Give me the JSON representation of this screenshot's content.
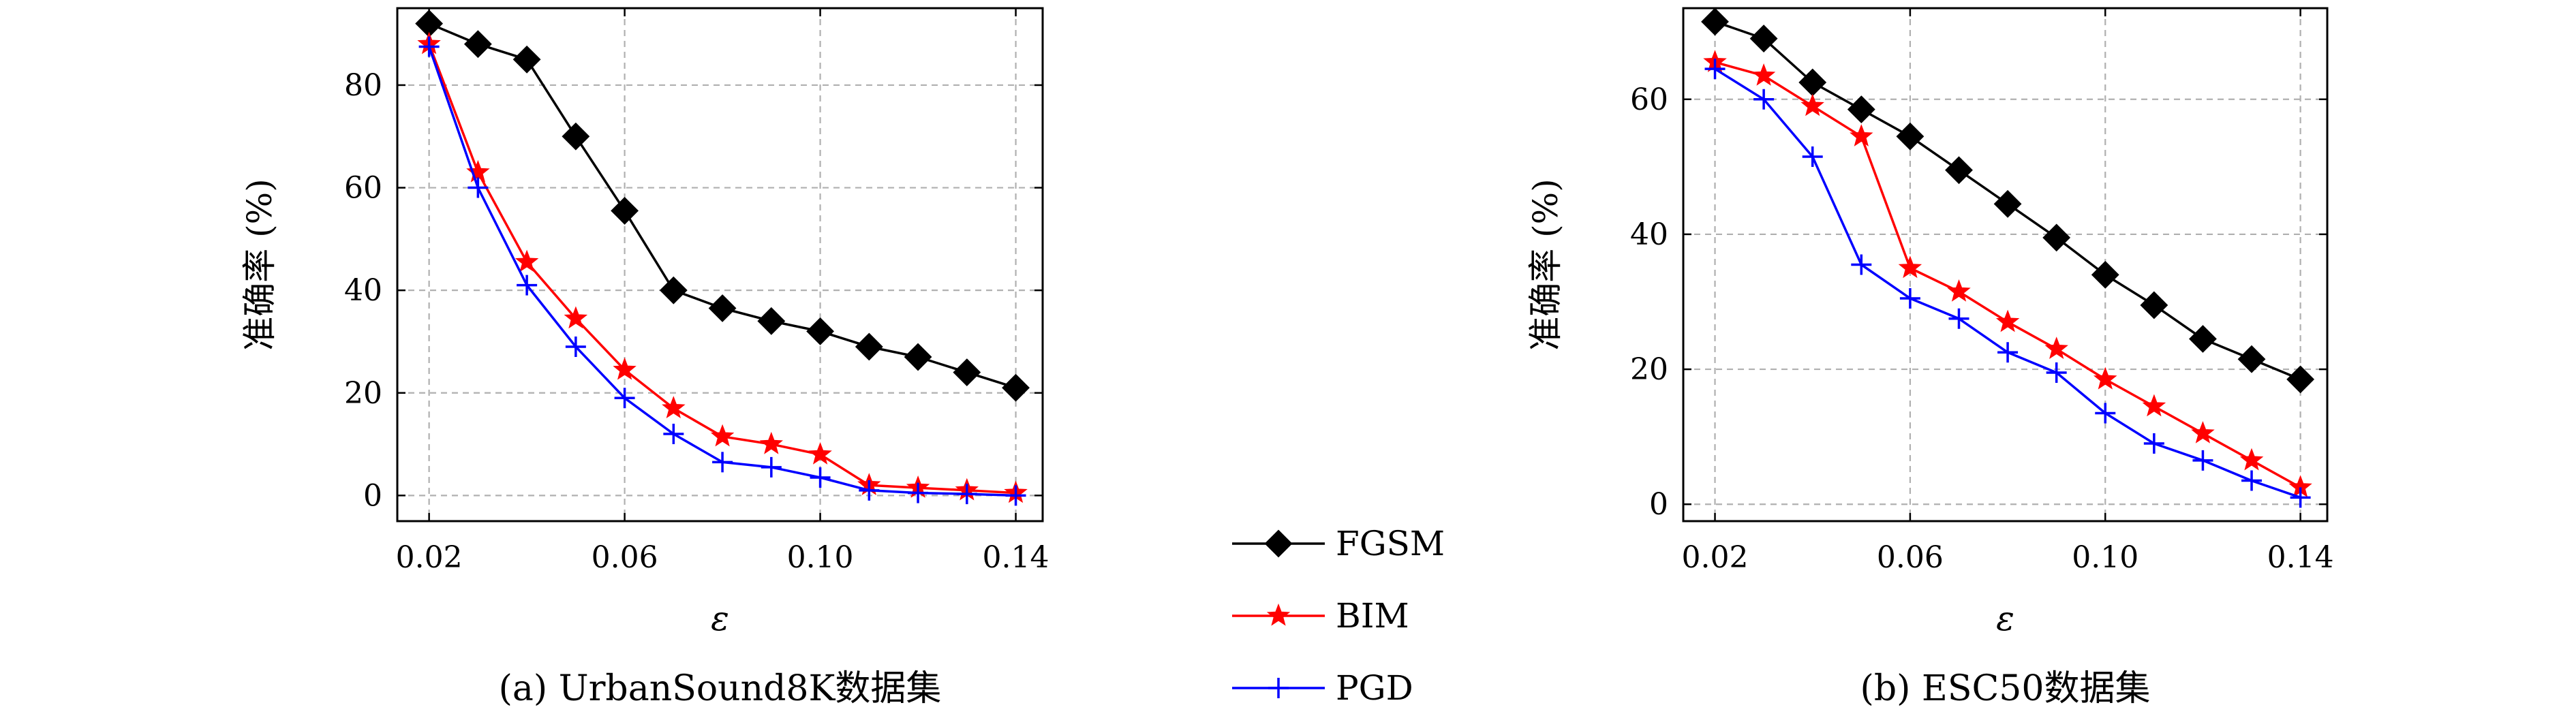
{
  "chart_data": [
    {
      "type": "line",
      "caption": "(a) UrbanSound8K数据集",
      "xlabel": "ε",
      "ylabel": "准确率 (%)",
      "x": [
        0.02,
        0.03,
        0.04,
        0.05,
        0.06,
        0.07,
        0.08,
        0.09,
        0.1,
        0.11,
        0.12,
        0.13,
        0.14
      ],
      "xlim": [
        0.0135,
        0.1455
      ],
      "ylim": [
        -5,
        95
      ],
      "xticks": [
        0.02,
        0.06,
        0.1,
        0.14
      ],
      "xtick_labels": [
        "0.02",
        "0.06",
        "0.10",
        "0.14"
      ],
      "yticks": [
        0,
        20,
        40,
        60,
        80
      ],
      "ytick_labels": [
        "0",
        "20",
        "40",
        "60",
        "80"
      ],
      "grid": true,
      "series": [
        {
          "name": "FGSM",
          "values": [
            92,
            88,
            85,
            70,
            55.5,
            40,
            36.5,
            34,
            32,
            29,
            27,
            24,
            21
          ]
        },
        {
          "name": "BIM",
          "values": [
            88,
            63,
            45.5,
            34.5,
            24.5,
            17,
            11.5,
            10,
            8,
            2,
            1.5,
            1,
            0.5
          ]
        },
        {
          "name": "PGD",
          "values": [
            87.5,
            60,
            41,
            29,
            19,
            12,
            6.5,
            5.5,
            3.5,
            1,
            0.5,
            0.3,
            0
          ]
        }
      ]
    },
    {
      "type": "line",
      "caption": "(b) ESC50数据集",
      "xlabel": "ε",
      "ylabel": "准确率 (%)",
      "x": [
        0.02,
        0.03,
        0.04,
        0.05,
        0.06,
        0.07,
        0.08,
        0.09,
        0.1,
        0.11,
        0.12,
        0.13,
        0.14
      ],
      "xlim": [
        0.0135,
        0.1455
      ],
      "ylim": [
        -2.5,
        73.5
      ],
      "xticks": [
        0.02,
        0.06,
        0.1,
        0.14
      ],
      "xtick_labels": [
        "0.02",
        "0.06",
        "0.10",
        "0.14"
      ],
      "yticks": [
        0,
        20,
        40,
        60
      ],
      "ytick_labels": [
        "0",
        "20",
        "40",
        "60"
      ],
      "grid": true,
      "series": [
        {
          "name": "FGSM",
          "values": [
            71.5,
            69,
            62.5,
            58.5,
            54.5,
            49.5,
            44.5,
            39.5,
            34,
            29.5,
            24.5,
            21.5,
            18.5
          ]
        },
        {
          "name": "BIM",
          "values": [
            65.5,
            63.5,
            59,
            54.5,
            35,
            31.5,
            27,
            23,
            18.5,
            14.5,
            10.5,
            6.5,
            2.5
          ]
        },
        {
          "name": "PGD",
          "values": [
            64.5,
            60,
            51.5,
            35.5,
            30.5,
            27.5,
            22.5,
            19.5,
            13.5,
            9,
            6.5,
            3.5,
            1
          ]
        }
      ]
    }
  ],
  "legend": {
    "position": "center",
    "entries": [
      {
        "label": "FGSM",
        "color": "#000000",
        "marker": "diamond"
      },
      {
        "label": "BIM",
        "color": "#ff0000",
        "marker": "star"
      },
      {
        "label": "PGD",
        "color": "#0000ff",
        "marker": "plus"
      }
    ]
  },
  "colors": {
    "FGSM": "#000000",
    "BIM": "#ff0000",
    "PGD": "#0000ff",
    "grid": "#b0b0b0"
  }
}
